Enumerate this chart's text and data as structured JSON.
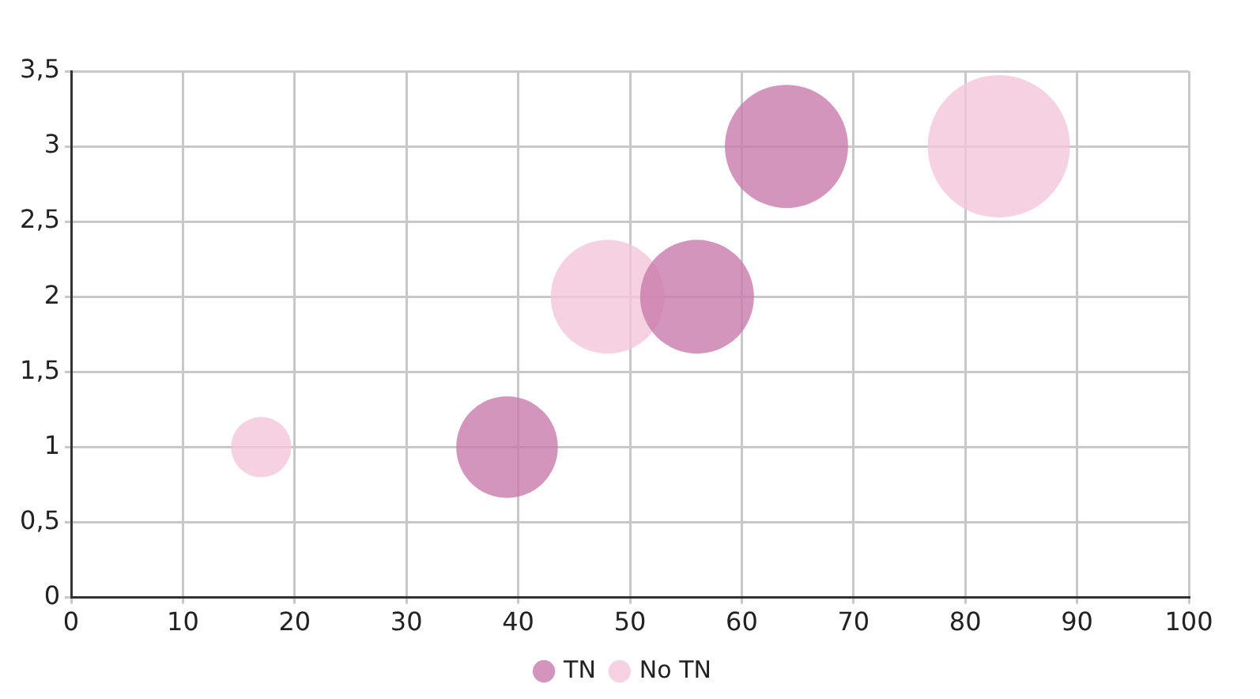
{
  "chart_data": {
    "type": "bubble",
    "series": [
      {
        "name": "TN",
        "color": "#c97aab",
        "x": [
          39,
          56,
          64
        ],
        "values": [
          1,
          2,
          3
        ],
        "sizes": [
          0.51,
          0.64,
          0.75
        ]
      },
      {
        "name": "No TN",
        "color": "#f2c6da",
        "x": [
          17,
          48,
          83
        ],
        "values": [
          1,
          2,
          3
        ],
        "sizes": [
          0.18,
          0.64,
          1
        ]
      }
    ],
    "xlim": [
      0,
      100
    ],
    "xticks": [
      0,
      10,
      20,
      30,
      40,
      50,
      60,
      70,
      80,
      90,
      100
    ],
    "ylim": [
      0,
      3.5
    ],
    "yticks": [
      0,
      {
        "value": 0.5,
        "label": "0,5"
      },
      1,
      {
        "value": 1.5,
        "label": "1,5"
      },
      2,
      {
        "value": 2.5,
        "label": "2,5"
      },
      3,
      {
        "value": 3.5,
        "label": "3,5"
      }
    ],
    "grid": true,
    "legend": "bottom",
    "marker": "circle"
  }
}
